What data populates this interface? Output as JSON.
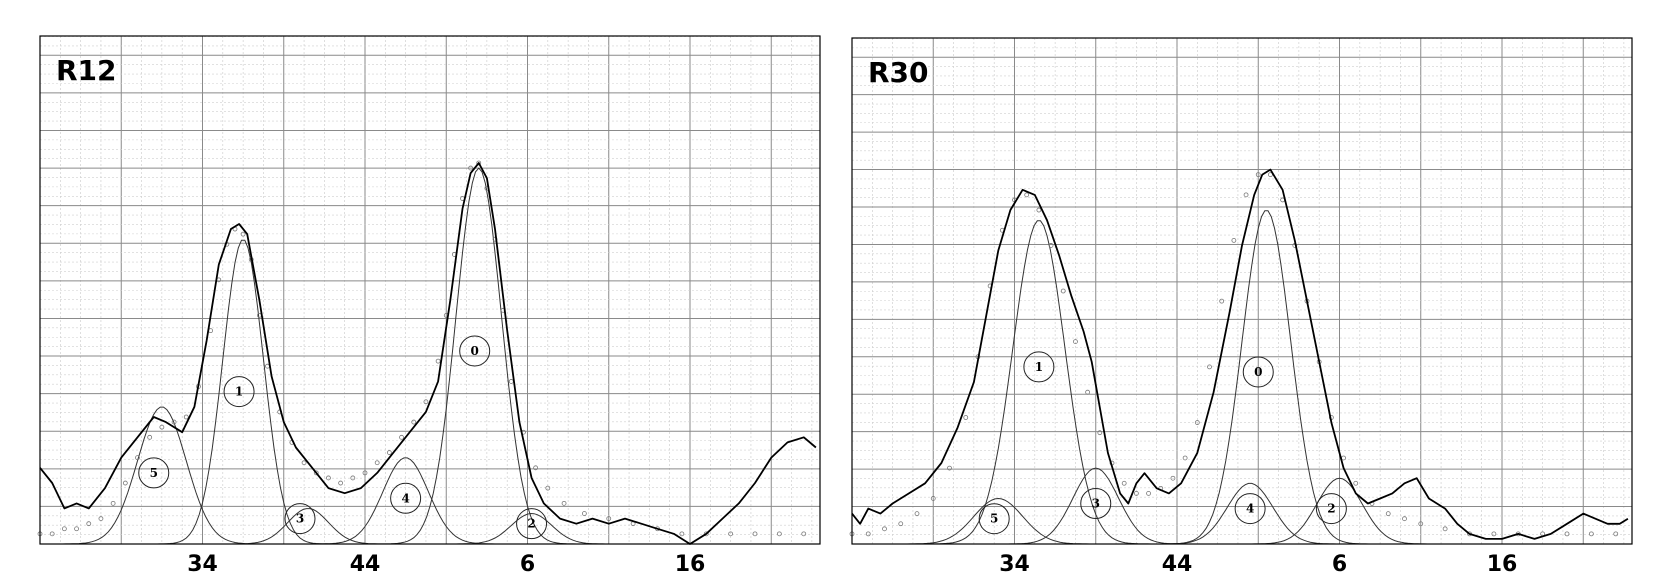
{
  "chart_data": [
    {
      "type": "line",
      "title": "R12",
      "xlabel": "",
      "ylabel": "",
      "x_tick_labels": [
        {
          "label": "34",
          "x": 2
        },
        {
          "label": "44",
          "x": 4
        },
        {
          "label": "6",
          "x": 6
        },
        {
          "label": "16",
          "x": 8
        }
      ],
      "xlim": [
        0,
        9.6
      ],
      "ylim": [
        0,
        1.0
      ],
      "grid": true,
      "measured_curve": [
        [
          0,
          0.15
        ],
        [
          0.15,
          0.12
        ],
        [
          0.3,
          0.07
        ],
        [
          0.45,
          0.08
        ],
        [
          0.6,
          0.07
        ],
        [
          0.8,
          0.11
        ],
        [
          1.0,
          0.17
        ],
        [
          1.2,
          0.21
        ],
        [
          1.4,
          0.25
        ],
        [
          1.55,
          0.24
        ],
        [
          1.75,
          0.22
        ],
        [
          1.9,
          0.27
        ],
        [
          2.05,
          0.4
        ],
        [
          2.2,
          0.55
        ],
        [
          2.35,
          0.62
        ],
        [
          2.45,
          0.63
        ],
        [
          2.55,
          0.61
        ],
        [
          2.7,
          0.48
        ],
        [
          2.85,
          0.33
        ],
        [
          3.0,
          0.24
        ],
        [
          3.15,
          0.19
        ],
        [
          3.35,
          0.15
        ],
        [
          3.55,
          0.11
        ],
        [
          3.75,
          0.1
        ],
        [
          3.95,
          0.11
        ],
        [
          4.15,
          0.14
        ],
        [
          4.35,
          0.18
        ],
        [
          4.55,
          0.22
        ],
        [
          4.75,
          0.26
        ],
        [
          4.9,
          0.32
        ],
        [
          5.05,
          0.48
        ],
        [
          5.2,
          0.66
        ],
        [
          5.3,
          0.73
        ],
        [
          5.4,
          0.75
        ],
        [
          5.5,
          0.72
        ],
        [
          5.6,
          0.62
        ],
        [
          5.75,
          0.42
        ],
        [
          5.9,
          0.24
        ],
        [
          6.05,
          0.13
        ],
        [
          6.2,
          0.08
        ],
        [
          6.4,
          0.05
        ],
        [
          6.6,
          0.04
        ],
        [
          6.8,
          0.05
        ],
        [
          7.0,
          0.04
        ],
        [
          7.2,
          0.05
        ],
        [
          7.4,
          0.04
        ],
        [
          7.6,
          0.03
        ],
        [
          7.8,
          0.02
        ],
        [
          8.0,
          0.0
        ],
        [
          8.2,
          0.02
        ],
        [
          8.4,
          0.05
        ],
        [
          8.6,
          0.08
        ],
        [
          8.8,
          0.12
        ],
        [
          9.0,
          0.17
        ],
        [
          9.2,
          0.2
        ],
        [
          9.4,
          0.21
        ],
        [
          9.55,
          0.19
        ]
      ],
      "fit_points": [
        [
          0,
          0.02
        ],
        [
          0.15,
          0.02
        ],
        [
          0.3,
          0.03
        ],
        [
          0.45,
          0.03
        ],
        [
          0.6,
          0.04
        ],
        [
          0.75,
          0.05
        ],
        [
          0.9,
          0.08
        ],
        [
          1.05,
          0.12
        ],
        [
          1.2,
          0.17
        ],
        [
          1.35,
          0.21
        ],
        [
          1.5,
          0.23
        ],
        [
          1.65,
          0.24
        ],
        [
          1.8,
          0.25
        ],
        [
          1.95,
          0.31
        ],
        [
          2.1,
          0.42
        ],
        [
          2.2,
          0.52
        ],
        [
          2.3,
          0.59
        ],
        [
          2.4,
          0.62
        ],
        [
          2.5,
          0.61
        ],
        [
          2.6,
          0.56
        ],
        [
          2.7,
          0.45
        ],
        [
          2.8,
          0.35
        ],
        [
          2.95,
          0.26
        ],
        [
          3.1,
          0.2
        ],
        [
          3.25,
          0.16
        ],
        [
          3.4,
          0.14
        ],
        [
          3.55,
          0.13
        ],
        [
          3.7,
          0.12
        ],
        [
          3.85,
          0.13
        ],
        [
          4.0,
          0.14
        ],
        [
          4.15,
          0.16
        ],
        [
          4.3,
          0.18
        ],
        [
          4.45,
          0.21
        ],
        [
          4.6,
          0.24
        ],
        [
          4.75,
          0.28
        ],
        [
          4.9,
          0.36
        ],
        [
          5.0,
          0.45
        ],
        [
          5.1,
          0.57
        ],
        [
          5.2,
          0.68
        ],
        [
          5.3,
          0.74
        ],
        [
          5.4,
          0.75
        ],
        [
          5.5,
          0.7
        ],
        [
          5.6,
          0.6
        ],
        [
          5.7,
          0.46
        ],
        [
          5.8,
          0.32
        ],
        [
          5.95,
          0.22
        ],
        [
          6.1,
          0.15
        ],
        [
          6.25,
          0.11
        ],
        [
          6.45,
          0.08
        ],
        [
          6.7,
          0.06
        ],
        [
          7.0,
          0.05
        ],
        [
          7.3,
          0.04
        ],
        [
          7.6,
          0.03
        ],
        [
          7.9,
          0.02
        ],
        [
          8.2,
          0.02
        ],
        [
          8.5,
          0.02
        ],
        [
          8.8,
          0.02
        ],
        [
          9.1,
          0.02
        ],
        [
          9.4,
          0.02
        ]
      ],
      "components": [
        {
          "label": "0",
          "center": 5.4,
          "amplitude": 0.74,
          "width": 0.28,
          "label_pos": [
            5.35,
            0.38
          ]
        },
        {
          "label": "1",
          "center": 2.5,
          "amplitude": 0.6,
          "width": 0.25,
          "label_pos": [
            2.45,
            0.3
          ]
        },
        {
          "label": "2",
          "center": 6.05,
          "amplitude": 0.06,
          "width": 0.25,
          "label_pos": [
            6.05,
            0.04
          ]
        },
        {
          "label": "3",
          "center": 3.3,
          "amplitude": 0.07,
          "width": 0.25,
          "label_pos": [
            3.2,
            0.05
          ]
        },
        {
          "label": "4",
          "center": 4.5,
          "amplitude": 0.17,
          "width": 0.28,
          "label_pos": [
            4.5,
            0.09
          ]
        },
        {
          "label": "5",
          "center": 1.5,
          "amplitude": 0.27,
          "width": 0.3,
          "label_pos": [
            1.4,
            0.14
          ]
        }
      ]
    },
    {
      "type": "line",
      "title": "R30",
      "xlabel": "",
      "ylabel": "",
      "x_tick_labels": [
        {
          "label": "34",
          "x": 2
        },
        {
          "label": "44",
          "x": 4
        },
        {
          "label": "6",
          "x": 6
        },
        {
          "label": "16",
          "x": 8
        }
      ],
      "xlim": [
        0,
        9.6
      ],
      "ylim": [
        0,
        1.0
      ],
      "grid": true,
      "measured_curve": [
        [
          0,
          0.06
        ],
        [
          0.1,
          0.04
        ],
        [
          0.2,
          0.07
        ],
        [
          0.35,
          0.06
        ],
        [
          0.5,
          0.08
        ],
        [
          0.7,
          0.1
        ],
        [
          0.9,
          0.12
        ],
        [
          1.1,
          0.16
        ],
        [
          1.3,
          0.23
        ],
        [
          1.5,
          0.32
        ],
        [
          1.65,
          0.45
        ],
        [
          1.8,
          0.58
        ],
        [
          1.95,
          0.66
        ],
        [
          2.1,
          0.7
        ],
        [
          2.25,
          0.69
        ],
        [
          2.4,
          0.64
        ],
        [
          2.55,
          0.57
        ],
        [
          2.7,
          0.49
        ],
        [
          2.85,
          0.42
        ],
        [
          2.95,
          0.36
        ],
        [
          3.05,
          0.27
        ],
        [
          3.15,
          0.18
        ],
        [
          3.3,
          0.1
        ],
        [
          3.4,
          0.08
        ],
        [
          3.5,
          0.12
        ],
        [
          3.6,
          0.14
        ],
        [
          3.75,
          0.11
        ],
        [
          3.9,
          0.1
        ],
        [
          4.05,
          0.12
        ],
        [
          4.25,
          0.18
        ],
        [
          4.45,
          0.3
        ],
        [
          4.65,
          0.46
        ],
        [
          4.8,
          0.59
        ],
        [
          4.95,
          0.69
        ],
        [
          5.05,
          0.73
        ],
        [
          5.15,
          0.74
        ],
        [
          5.3,
          0.7
        ],
        [
          5.45,
          0.6
        ],
        [
          5.6,
          0.48
        ],
        [
          5.75,
          0.36
        ],
        [
          5.9,
          0.24
        ],
        [
          6.05,
          0.15
        ],
        [
          6.2,
          0.1
        ],
        [
          6.35,
          0.08
        ],
        [
          6.5,
          0.09
        ],
        [
          6.65,
          0.1
        ],
        [
          6.8,
          0.12
        ],
        [
          6.95,
          0.13
        ],
        [
          7.1,
          0.09
        ],
        [
          7.3,
          0.07
        ],
        [
          7.45,
          0.04
        ],
        [
          7.6,
          0.02
        ],
        [
          7.8,
          0.01
        ],
        [
          8.0,
          0.01
        ],
        [
          8.2,
          0.02
        ],
        [
          8.4,
          0.01
        ],
        [
          8.6,
          0.02
        ],
        [
          8.8,
          0.04
        ],
        [
          9.0,
          0.06
        ],
        [
          9.15,
          0.05
        ],
        [
          9.3,
          0.04
        ],
        [
          9.45,
          0.04
        ],
        [
          9.55,
          0.05
        ]
      ],
      "fit_points": [
        [
          0,
          0.02
        ],
        [
          0.2,
          0.02
        ],
        [
          0.4,
          0.03
        ],
        [
          0.6,
          0.04
        ],
        [
          0.8,
          0.06
        ],
        [
          1.0,
          0.09
        ],
        [
          1.2,
          0.15
        ],
        [
          1.4,
          0.25
        ],
        [
          1.55,
          0.37
        ],
        [
          1.7,
          0.51
        ],
        [
          1.85,
          0.62
        ],
        [
          2.0,
          0.68
        ],
        [
          2.15,
          0.69
        ],
        [
          2.3,
          0.66
        ],
        [
          2.45,
          0.59
        ],
        [
          2.6,
          0.5
        ],
        [
          2.75,
          0.4
        ],
        [
          2.9,
          0.3
        ],
        [
          3.05,
          0.22
        ],
        [
          3.2,
          0.16
        ],
        [
          3.35,
          0.12
        ],
        [
          3.5,
          0.1
        ],
        [
          3.65,
          0.1
        ],
        [
          3.8,
          0.11
        ],
        [
          3.95,
          0.13
        ],
        [
          4.1,
          0.17
        ],
        [
          4.25,
          0.24
        ],
        [
          4.4,
          0.35
        ],
        [
          4.55,
          0.48
        ],
        [
          4.7,
          0.6
        ],
        [
          4.85,
          0.69
        ],
        [
          5.0,
          0.73
        ],
        [
          5.15,
          0.73
        ],
        [
          5.3,
          0.68
        ],
        [
          5.45,
          0.59
        ],
        [
          5.6,
          0.48
        ],
        [
          5.75,
          0.36
        ],
        [
          5.9,
          0.25
        ],
        [
          6.05,
          0.17
        ],
        [
          6.2,
          0.12
        ],
        [
          6.4,
          0.08
        ],
        [
          6.6,
          0.06
        ],
        [
          6.8,
          0.05
        ],
        [
          7.0,
          0.04
        ],
        [
          7.3,
          0.03
        ],
        [
          7.6,
          0.02
        ],
        [
          7.9,
          0.02
        ],
        [
          8.2,
          0.02
        ],
        [
          8.5,
          0.02
        ],
        [
          8.8,
          0.02
        ],
        [
          9.1,
          0.02
        ],
        [
          9.4,
          0.02
        ]
      ],
      "components": [
        {
          "label": "0",
          "center": 5.1,
          "amplitude": 0.66,
          "width": 0.3,
          "label_pos": [
            5.0,
            0.34
          ]
        },
        {
          "label": "1",
          "center": 2.3,
          "amplitude": 0.64,
          "width": 0.32,
          "label_pos": [
            2.3,
            0.35
          ]
        },
        {
          "label": "2",
          "center": 6.0,
          "amplitude": 0.13,
          "width": 0.28,
          "label_pos": [
            5.9,
            0.07
          ]
        },
        {
          "label": "3",
          "center": 3.0,
          "amplitude": 0.15,
          "width": 0.28,
          "label_pos": [
            3.0,
            0.08
          ]
        },
        {
          "label": "4",
          "center": 4.9,
          "amplitude": 0.12,
          "width": 0.28,
          "label_pos": [
            4.9,
            0.07
          ]
        },
        {
          "label": "5",
          "center": 1.8,
          "amplitude": 0.09,
          "width": 0.3,
          "label_pos": [
            1.75,
            0.05
          ]
        }
      ]
    }
  ]
}
